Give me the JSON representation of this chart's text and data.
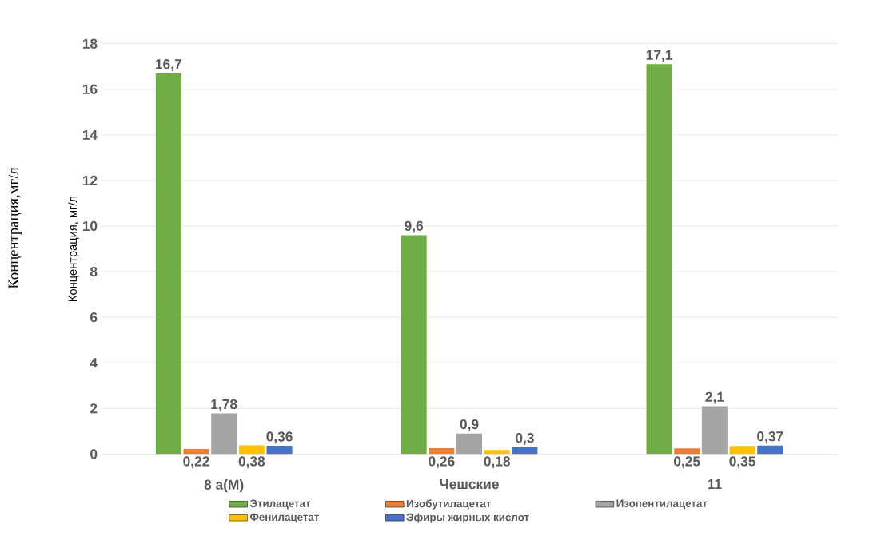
{
  "chart_data": {
    "type": "bar",
    "ylabel": "Концентрация,  мг/л",
    "annotations": [
      "Концентрация,мг/л"
    ],
    "categories": [
      "8 а(М)",
      "Чешские",
      "11"
    ],
    "series": [
      {
        "name": "Этилацетат",
        "color": "#70ad47",
        "values": [
          16.7,
          9.6,
          17.1
        ],
        "value_labels": [
          "16,7",
          "9,6",
          "17,1"
        ]
      },
      {
        "name": "Изобутилацетат",
        "color": "#ed7d31",
        "values": [
          0.22,
          0.26,
          0.25
        ],
        "value_labels": [
          "0,22",
          "0,26",
          "0,25"
        ]
      },
      {
        "name": "Изопентилацетат",
        "color": "#a5a5a5",
        "values": [
          1.78,
          0.9,
          2.1
        ],
        "value_labels": [
          "1,78",
          "0,9",
          "2,1"
        ]
      },
      {
        "name": "Фенилацетат",
        "color": "#ffc000",
        "values": [
          0.38,
          0.18,
          0.35
        ],
        "value_labels": [
          "0,38",
          "0,18",
          "0,35"
        ]
      },
      {
        "name": "Эфиры жирных кислот",
        "color": "#4472c4",
        "values": [
          0.36,
          0.3,
          0.37
        ],
        "value_labels": [
          "0,36",
          "0,3",
          "0,37"
        ]
      }
    ],
    "ylim": [
      0,
      18
    ],
    "yticks": [
      0,
      2,
      4,
      6,
      8,
      10,
      12,
      14,
      16,
      18
    ],
    "grid": "y",
    "legend": "bottom"
  }
}
